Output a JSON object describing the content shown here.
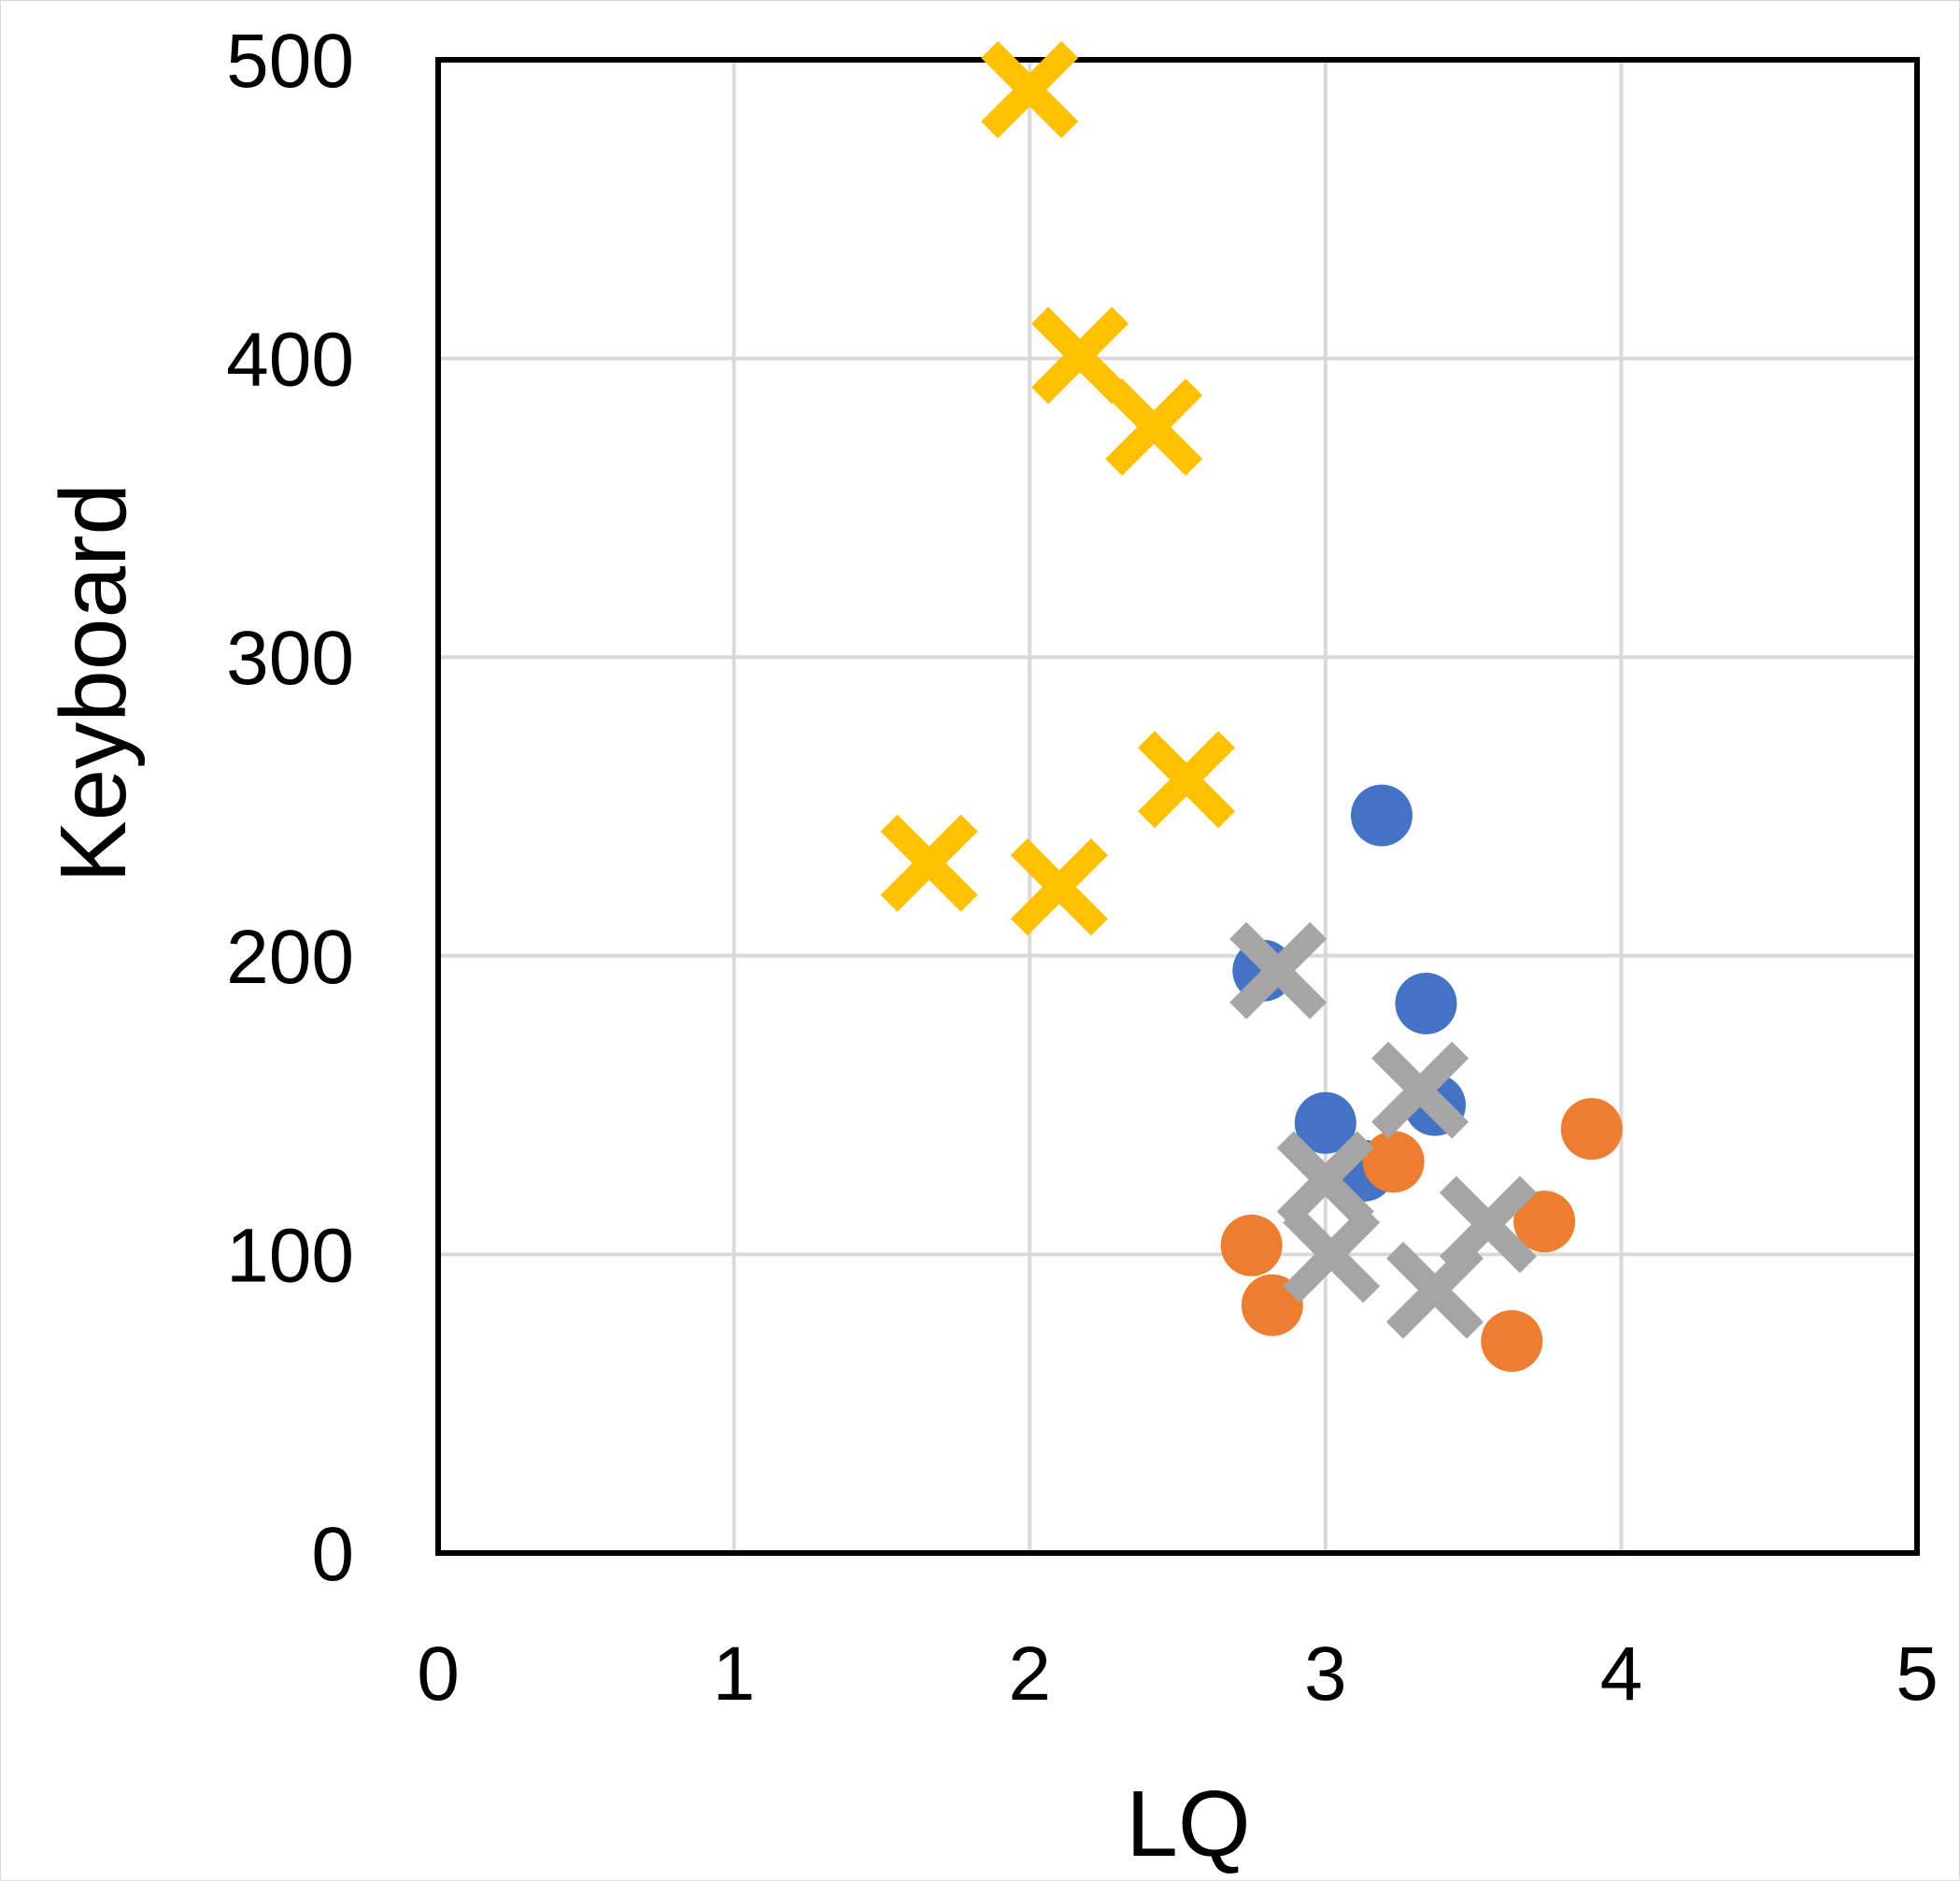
{
  "chart_data": {
    "type": "scatter",
    "title": "",
    "xlabel": "LQ",
    "ylabel": "Keyboard",
    "xlim": [
      0,
      5
    ],
    "ylim": [
      0,
      500
    ],
    "xticks": [
      "0",
      "1",
      "2",
      "3",
      "4",
      "5"
    ],
    "yticks": [
      "0",
      "100",
      "200",
      "300",
      "400",
      "500"
    ],
    "grid": true,
    "legend": "none",
    "series": [
      {
        "name": "series-blue-circles",
        "marker": "circle",
        "color": "#4472c4",
        "points": [
          {
            "x": 3.19,
            "y": 247
          },
          {
            "x": 2.79,
            "y": 195
          },
          {
            "x": 3.34,
            "y": 184
          },
          {
            "x": 3.37,
            "y": 150
          },
          {
            "x": 3.0,
            "y": 144
          },
          {
            "x": 3.13,
            "y": 128
          }
        ]
      },
      {
        "name": "series-orange-circles",
        "marker": "circle",
        "color": "#ed7d31",
        "points": [
          {
            "x": 3.9,
            "y": 142
          },
          {
            "x": 3.23,
            "y": 131
          },
          {
            "x": 3.74,
            "y": 111
          },
          {
            "x": 2.75,
            "y": 103
          },
          {
            "x": 2.82,
            "y": 83
          },
          {
            "x": 3.63,
            "y": 71
          }
        ]
      },
      {
        "name": "series-yellow-crosses",
        "marker": "cross",
        "color": "#ffc000",
        "points": [
          {
            "x": 2.0,
            "y": 490
          },
          {
            "x": 2.17,
            "y": 401
          },
          {
            "x": 2.42,
            "y": 377
          },
          {
            "x": 2.53,
            "y": 259
          },
          {
            "x": 1.66,
            "y": 231
          },
          {
            "x": 2.1,
            "y": 223
          }
        ]
      },
      {
        "name": "series-gray-crosses",
        "marker": "cross",
        "color": "#a5a5a5",
        "points": [
          {
            "x": 2.84,
            "y": 195
          },
          {
            "x": 3.32,
            "y": 155
          },
          {
            "x": 3.0,
            "y": 125
          },
          {
            "x": 3.55,
            "y": 110
          },
          {
            "x": 3.02,
            "y": 100
          },
          {
            "x": 3.37,
            "y": 88
          }
        ]
      }
    ]
  }
}
